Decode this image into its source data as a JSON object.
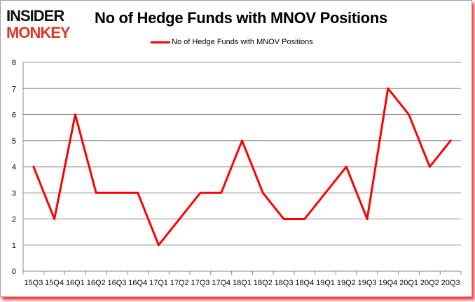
{
  "logo": {
    "line1": "INSIDER",
    "line2": "MONKEY"
  },
  "chart_data": {
    "type": "line",
    "title": "No of Hedge Funds with MNOV Positions",
    "xlabel": "",
    "ylabel": "",
    "categories": [
      "15Q3",
      "15Q4",
      "16Q1",
      "16Q2",
      "16Q3",
      "16Q4",
      "17Q1",
      "17Q2",
      "17Q3",
      "17Q4",
      "18Q1",
      "18Q2",
      "18Q3",
      "18Q4",
      "19Q1",
      "19Q2",
      "19Q3",
      "19Q4",
      "20Q1",
      "20Q2",
      "20Q3"
    ],
    "series": [
      {
        "name": "No of Hedge Funds with MNOV Positions",
        "color": "#ff0000",
        "values": [
          4,
          2,
          6,
          3,
          3,
          3,
          1,
          2,
          3,
          3,
          5,
          3,
          2,
          2,
          3,
          4,
          2,
          7,
          6,
          4,
          5
        ]
      }
    ],
    "ylim": [
      0,
      8
    ],
    "yticks": [
      0,
      1,
      2,
      3,
      4,
      5,
      6,
      7,
      8
    ],
    "grid": true,
    "legend": "top-center"
  }
}
